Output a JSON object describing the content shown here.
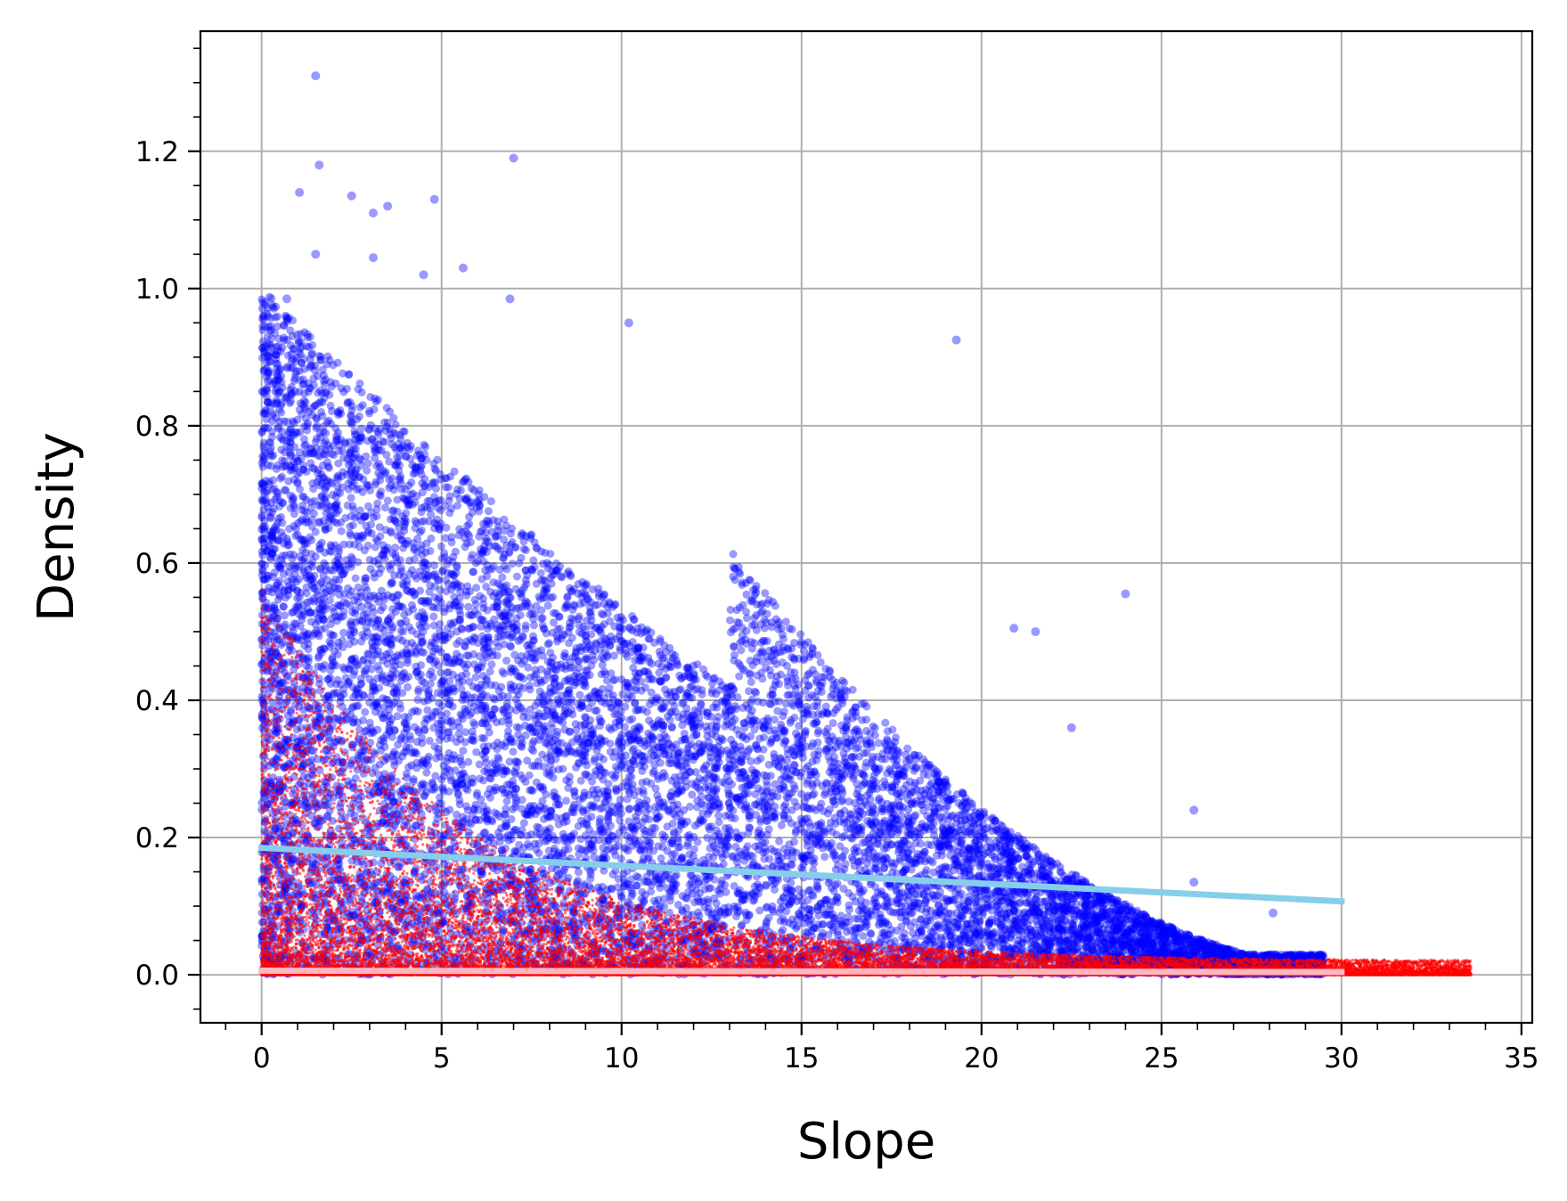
{
  "chart_data": {
    "type": "scatter",
    "title": "",
    "xlabel": "Slope",
    "ylabel": "Density",
    "xlim": [
      -1.7,
      35.3
    ],
    "ylim": [
      -0.07,
      1.375
    ],
    "xticks": [
      0,
      5,
      10,
      15,
      20,
      25,
      30,
      35
    ],
    "yticks": [
      0.0,
      0.2,
      0.4,
      0.6,
      0.8,
      1.0,
      1.2
    ],
    "xtick_labels": [
      "0",
      "5",
      "10",
      "15",
      "20",
      "25",
      "30",
      "35"
    ],
    "ytick_labels": [
      "0.0",
      "0.2",
      "0.4",
      "0.6",
      "0.8",
      "1.0",
      "1.2"
    ],
    "x_minor_step": 1,
    "y_minor_step": 0.05,
    "grid": true,
    "legend": "none",
    "series": [
      {
        "color": "#0000ff",
        "opacity": 0.4,
        "marker_size": 4.5,
        "point_count": 12000,
        "notable_points": [
          {
            "x": 1.5,
            "y": 1.31
          },
          {
            "x": 1.6,
            "y": 1.18
          },
          {
            "x": 1.05,
            "y": 1.14
          },
          {
            "x": 7.0,
            "y": 1.19
          },
          {
            "x": 2.5,
            "y": 1.135
          },
          {
            "x": 3.1,
            "y": 1.11
          },
          {
            "x": 3.5,
            "y": 1.12
          },
          {
            "x": 4.8,
            "y": 1.13
          },
          {
            "x": 1.5,
            "y": 1.05
          },
          {
            "x": 3.1,
            "y": 1.045
          },
          {
            "x": 4.5,
            "y": 1.02
          },
          {
            "x": 5.6,
            "y": 1.03
          },
          {
            "x": 0.7,
            "y": 0.985
          },
          {
            "x": 6.9,
            "y": 0.985
          },
          {
            "x": 10.2,
            "y": 0.95
          },
          {
            "x": 19.3,
            "y": 0.925
          },
          {
            "x": 24.0,
            "y": 0.555
          },
          {
            "x": 25.9,
            "y": 0.24
          },
          {
            "x": 22.5,
            "y": 0.36
          },
          {
            "x": 21.5,
            "y": 0.5
          },
          {
            "x": 20.9,
            "y": 0.505
          },
          {
            "x": 28.1,
            "y": 0.09
          },
          {
            "x": 29.3,
            "y": 0.02
          },
          {
            "x": 25.9,
            "y": 0.135
          }
        ],
        "trend": {
          "x": [
            0,
            30
          ],
          "y": [
            0.185,
            0.107
          ],
          "color": "#87ceeb"
        }
      },
      {
        "color": "#ff0000",
        "opacity": 0.55,
        "marker_size": 1.6,
        "point_count": 26000,
        "trend": {
          "x": [
            0,
            30
          ],
          "y": [
            0.006,
            0.004
          ],
          "color": "#ffb6c1"
        }
      }
    ]
  }
}
